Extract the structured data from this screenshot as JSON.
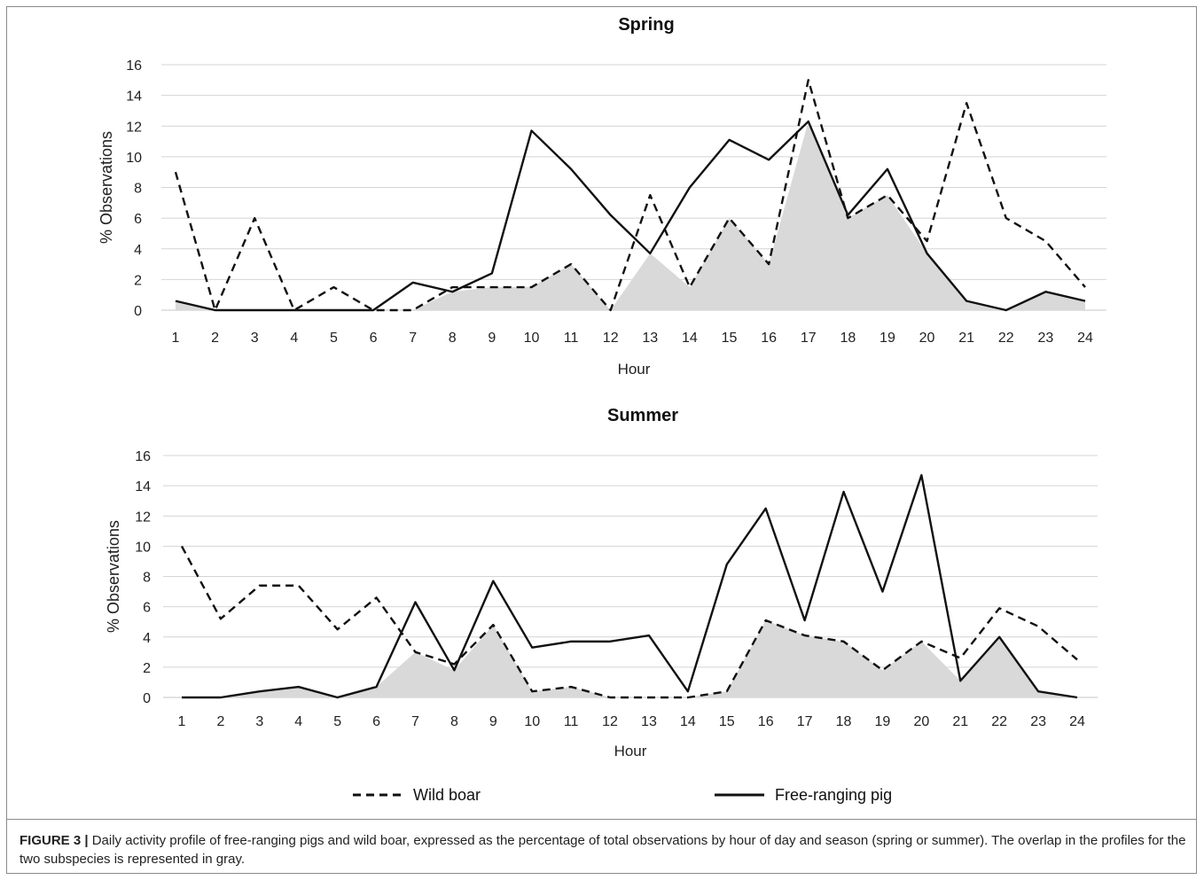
{
  "chart_data": [
    {
      "type": "area",
      "title": "Spring",
      "xlabel": "Hour",
      "ylabel": "% Observations",
      "ylim": [
        0,
        16
      ],
      "yticks": [
        0,
        2,
        4,
        6,
        8,
        10,
        12,
        14,
        16
      ],
      "x": [
        1,
        2,
        3,
        4,
        5,
        6,
        7,
        8,
        9,
        10,
        11,
        12,
        13,
        14,
        15,
        16,
        17,
        18,
        19,
        20,
        21,
        22,
        23,
        24
      ],
      "grid": true,
      "overlap_fill": "gray",
      "series": [
        {
          "name": "Wild boar",
          "style": "dashed",
          "values": [
            9.0,
            0,
            6.0,
            0,
            1.5,
            0,
            0,
            1.5,
            1.5,
            1.5,
            3.0,
            0,
            7.5,
            1.5,
            6.0,
            3.0,
            15.0,
            6.0,
            7.5,
            4.5,
            13.5,
            6.0,
            4.5,
            1.5
          ]
        },
        {
          "name": "Free-ranging pig",
          "style": "solid",
          "values": [
            0.6,
            0,
            0,
            0,
            0,
            0,
            1.8,
            1.2,
            2.4,
            11.7,
            9.2,
            6.2,
            3.7,
            8.0,
            11.1,
            9.8,
            12.3,
            6.2,
            9.2,
            3.7,
            0.6,
            0,
            1.2,
            0.6
          ]
        }
      ]
    },
    {
      "type": "area",
      "title": "Summer",
      "xlabel": "Hour",
      "ylabel": "% Observations",
      "ylim": [
        0,
        16
      ],
      "yticks": [
        0,
        2,
        4,
        6,
        8,
        10,
        12,
        14,
        16
      ],
      "x": [
        1,
        2,
        3,
        4,
        5,
        6,
        7,
        8,
        9,
        10,
        11,
        12,
        13,
        14,
        15,
        16,
        17,
        18,
        19,
        20,
        21,
        22,
        23,
        24
      ],
      "grid": true,
      "overlap_fill": "gray",
      "series": [
        {
          "name": "Wild boar",
          "style": "dashed",
          "values": [
            10.0,
            5.2,
            7.4,
            7.4,
            4.5,
            6.6,
            3.0,
            2.2,
            4.8,
            0.4,
            0.7,
            0,
            0,
            0,
            0.4,
            5.1,
            4.1,
            3.7,
            1.8,
            3.7,
            2.6,
            5.9,
            4.7,
            2.5
          ]
        },
        {
          "name": "Free-ranging pig",
          "style": "solid",
          "values": [
            0,
            0,
            0.4,
            0.7,
            0,
            0.7,
            6.3,
            1.8,
            7.7,
            3.3,
            3.7,
            3.7,
            4.1,
            0.4,
            8.8,
            12.5,
            5.1,
            13.6,
            7.0,
            14.7,
            1.1,
            4.0,
            0.4,
            0
          ]
        }
      ]
    }
  ],
  "legend": {
    "wild_boar": "Wild boar",
    "free_ranging_pig": "Free-ranging pig"
  },
  "caption": {
    "label": "FIGURE 3 |",
    "text": " Daily activity profile of free-ranging pigs and wild boar, expressed as the percentage of total observations by hour of day and season (spring or summer). The overlap in the profiles for the two subspecies is represented in gray."
  },
  "colors": {
    "line": "#111111",
    "overlap": "#d9d9d9",
    "grid": "#d4d4d4"
  }
}
